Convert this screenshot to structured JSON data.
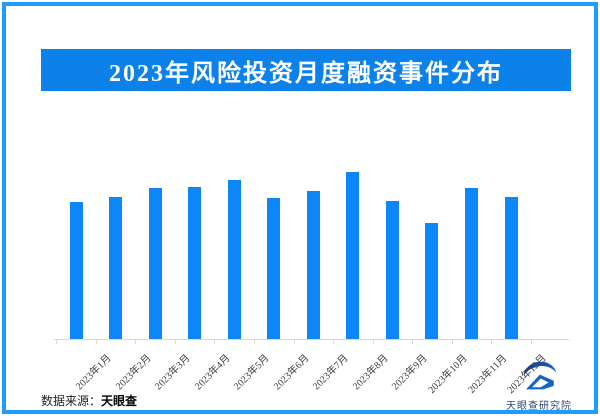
{
  "title_banner": {
    "text": "2023年风险投资月度融资事件分布"
  },
  "chart_data": {
    "type": "bar",
    "title": "2023年风险投资月度融资事件分布",
    "categories": [
      "2023年1月",
      "2023年2月",
      "2023年3月",
      "2023年4月",
      "2023年5月",
      "2023年6月",
      "2023年7月",
      "2023年8月",
      "2023年9月",
      "2023年10月",
      "2023年11月",
      "2023年12月"
    ],
    "values": [
      137,
      142,
      151,
      152,
      159,
      141,
      148,
      167,
      138,
      116,
      151,
      142
    ],
    "value_note": "no numeric y-axis or data labels shown in source; values are relative bar heights",
    "xlabel": "",
    "ylabel": "",
    "ylim": [
      0,
      180
    ],
    "grid": false,
    "legend": false,
    "x_label_rotation_deg": 45,
    "bar_color": "#0d86fa"
  },
  "footer": {
    "source_label": "数据来源：",
    "source_name": "天眼查"
  },
  "logo": {
    "text": "天眼查研究院",
    "icon": "tianyancha-eye-logo"
  },
  "colors": {
    "frame_border": "#1e9dff",
    "banner_bg": "#0c81e9",
    "banner_text": "#ffffff",
    "bar": "#0d86fa",
    "axis": "#d9d9d9",
    "axis_label": "#3c3c3c",
    "footer_text": "#222222",
    "logo_text": "#2a4a77",
    "logo_primary": "#1565c8",
    "logo_dark": "#1e3a7a"
  }
}
